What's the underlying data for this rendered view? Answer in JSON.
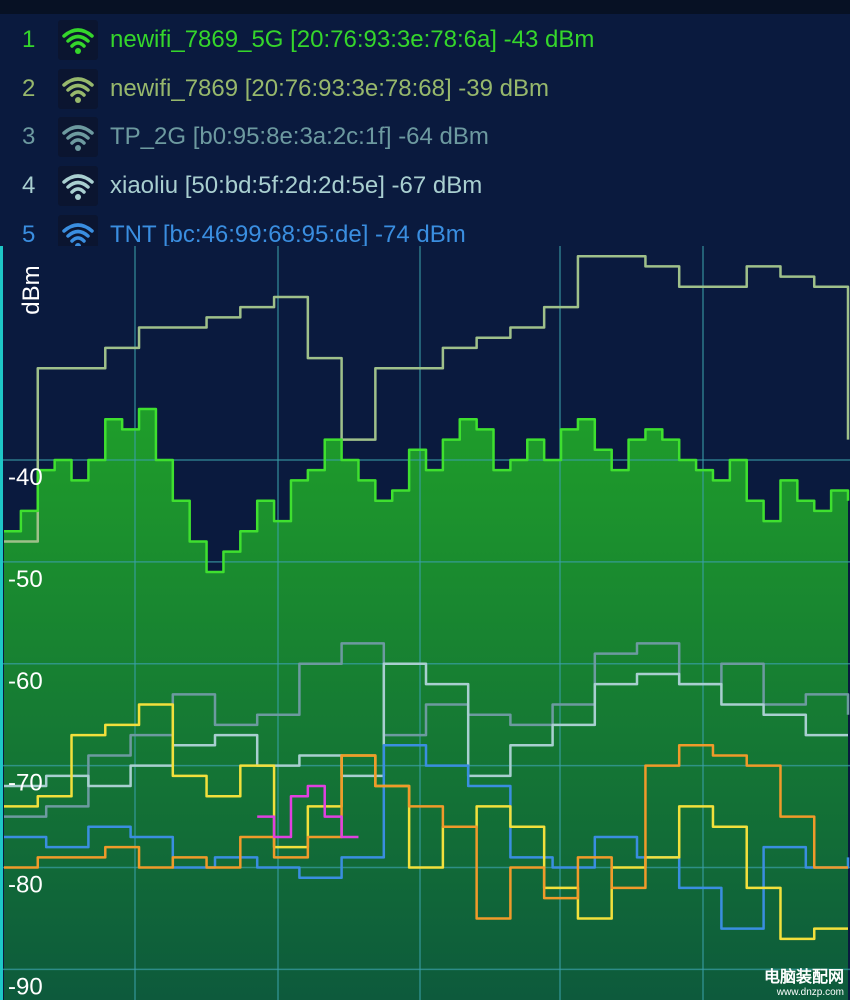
{
  "networks": [
    {
      "index": "1",
      "label": "newifi_7869_5G [20:76:93:3e:78:6a] -43 dBm",
      "color": "#35d62b"
    },
    {
      "index": "2",
      "label": "newifi_7869 [20:76:93:3e:78:68] -39 dBm",
      "color": "#97b86c"
    },
    {
      "index": "3",
      "label": "TP_2G [b0:95:8e:3a:2c:1f] -64 dBm",
      "color": "#6d9aa0"
    },
    {
      "index": "4",
      "label": "xiaoliu [50:bd:5f:2d:2d:5e] -67 dBm",
      "color": "#a9cfd0"
    },
    {
      "index": "5",
      "label": "TNT [bc:46:99:68:95:de] -74 dBm",
      "color": "#3a8ee0"
    }
  ],
  "chart_data": {
    "type": "line",
    "ylabel": "dBm",
    "ylim": [
      -93,
      -19
    ],
    "yticks": [
      -40,
      -50,
      -60,
      -70,
      -80,
      -90
    ],
    "ytick_labels": [
      "-40",
      "-50",
      "-60",
      "-70",
      "-80",
      "-90"
    ],
    "grid": true,
    "series": [
      {
        "name": "newifi_7869",
        "color": "#9fc08a",
        "x": [
          0,
          4,
          8,
          12,
          16,
          20,
          24,
          28,
          32,
          36,
          40,
          44,
          48,
          52,
          56,
          60,
          64,
          68,
          72,
          76,
          80,
          84,
          88,
          92,
          96,
          100
        ],
        "y": [
          -48,
          -31,
          -31,
          -29,
          -27,
          -27,
          -26,
          -25,
          -24,
          -30,
          -38,
          -31,
          -31,
          -29,
          -28,
          -27,
          -25,
          -20,
          -20,
          -21,
          -23,
          -23,
          -21,
          -22,
          -23,
          -38
        ]
      },
      {
        "name": "newifi_7869_5G",
        "color": "#3fe02f",
        "x": [
          0,
          2,
          4,
          6,
          8,
          10,
          12,
          14,
          16,
          18,
          20,
          22,
          24,
          26,
          28,
          30,
          32,
          34,
          36,
          38,
          40,
          42,
          44,
          46,
          48,
          50,
          52,
          54,
          56,
          58,
          60,
          62,
          64,
          66,
          68,
          70,
          72,
          74,
          76,
          78,
          80,
          82,
          84,
          86,
          88,
          90,
          92,
          94,
          96,
          98,
          100
        ],
        "y": [
          -47,
          -45,
          -41,
          -40,
          -42,
          -40,
          -36,
          -37,
          -35,
          -40,
          -44,
          -48,
          -51,
          -49,
          -47,
          -44,
          -46,
          -42,
          -41,
          -38,
          -40,
          -42,
          -44,
          -43,
          -39,
          -41,
          -38,
          -36,
          -37,
          -41,
          -40,
          -38,
          -40,
          -37,
          -36,
          -39,
          -41,
          -38,
          -37,
          -38,
          -40,
          -41,
          -42,
          -40,
          -44,
          -46,
          -42,
          -44,
          -45,
          -43,
          -44
        ]
      },
      {
        "name": "TP_2G",
        "color": "#6d9aa0",
        "x": [
          0,
          5,
          10,
          15,
          20,
          25,
          30,
          35,
          40,
          45,
          50,
          55,
          60,
          65,
          70,
          75,
          80,
          85,
          90,
          95,
          100
        ],
        "y": [
          -75,
          -74,
          -69,
          -67,
          -63,
          -66,
          -65,
          -60,
          -58,
          -67,
          -64,
          -65,
          -66,
          -64,
          -59,
          -58,
          -62,
          -60,
          -64,
          -63,
          -65
        ]
      },
      {
        "name": "xiaoliu",
        "color": "#a9cfd0",
        "x": [
          0,
          5,
          10,
          15,
          20,
          25,
          30,
          35,
          40,
          45,
          50,
          55,
          60,
          65,
          70,
          75,
          80,
          85,
          90,
          95,
          100
        ],
        "y": [
          -72,
          -71,
          -72,
          -70,
          -68,
          -67,
          -70,
          -69,
          -71,
          -60,
          -62,
          -71,
          -68,
          -66,
          -62,
          -61,
          -62,
          -64,
          -65,
          -67,
          -67
        ]
      },
      {
        "name": "TNT",
        "color": "#3a8ee0",
        "x": [
          0,
          5,
          10,
          15,
          20,
          25,
          30,
          35,
          40,
          45,
          50,
          55,
          60,
          65,
          70,
          75,
          80,
          85,
          90,
          95,
          100
        ],
        "y": [
          -77,
          -78,
          -76,
          -77,
          -80,
          -79,
          -80,
          -81,
          -79,
          -68,
          -70,
          -72,
          -79,
          -80,
          -77,
          -79,
          -82,
          -86,
          -78,
          -80,
          -79
        ]
      },
      {
        "color": "#f2e03c",
        "x": [
          0,
          4,
          8,
          12,
          16,
          20,
          24,
          28,
          32,
          36,
          40,
          44,
          48,
          52,
          56,
          60,
          64,
          68,
          72,
          76,
          80,
          84,
          88,
          92,
          96,
          100
        ],
        "y": [
          -74,
          -73,
          -67,
          -66,
          -64,
          -71,
          -73,
          -70,
          -78,
          -74,
          -69,
          -72,
          -80,
          -76,
          -74,
          -76,
          -82,
          -85,
          -80,
          -79,
          -74,
          -76,
          -82,
          -87,
          -86,
          -86
        ]
      },
      {
        "color": "#f09a2a",
        "x": [
          0,
          4,
          8,
          12,
          16,
          20,
          24,
          28,
          32,
          36,
          40,
          44,
          48,
          52,
          56,
          60,
          64,
          68,
          72,
          76,
          80,
          84,
          88,
          92,
          96,
          100
        ],
        "y": [
          -80,
          -79,
          -79,
          -78,
          -80,
          -79,
          -80,
          -77,
          -79,
          -77,
          -69,
          -72,
          -74,
          -76,
          -85,
          -80,
          -83,
          -79,
          -82,
          -70,
          -68,
          -69,
          -70,
          -75,
          -80,
          -80
        ]
      },
      {
        "color": "#e040e0",
        "x": [
          30,
          32,
          34,
          36,
          38,
          40,
          42
        ],
        "y": [
          -75,
          -77,
          -73,
          -72,
          -75,
          -77,
          -77
        ]
      }
    ]
  },
  "watermark": {
    "line1": "电脑装配网",
    "line2": "www.dnzp.com"
  }
}
